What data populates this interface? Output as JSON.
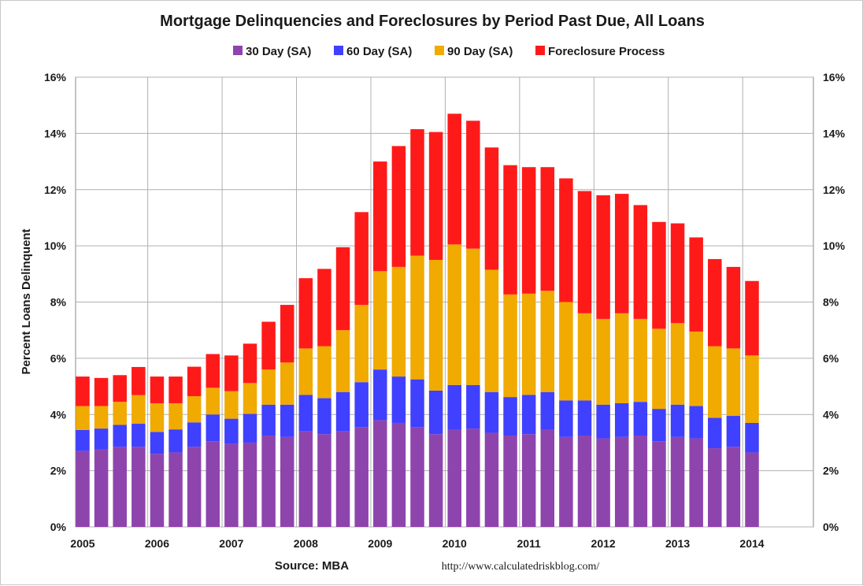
{
  "chart_data": {
    "type": "bar",
    "stacked": true,
    "title": "Mortgage Delinquencies and Foreclosures by Period Past Due, All Loans",
    "ylabel": "Percent Loans Delinquent",
    "ylim": [
      0,
      16
    ],
    "y_ticks": [
      "0%",
      "2%",
      "4%",
      "6%",
      "8%",
      "10%",
      "12%",
      "14%",
      "16%"
    ],
    "x_tick_labels": [
      "2005",
      "2006",
      "2007",
      "2008",
      "2009",
      "2010",
      "2011",
      "2012",
      "2013",
      "2014"
    ],
    "grid": true,
    "legend_position": "top",
    "series": [
      {
        "name": "30 Day (SA)",
        "color": "#8e44ad",
        "values": [
          2.7,
          2.75,
          2.85,
          2.85,
          2.6,
          2.65,
          2.85,
          3.05,
          2.95,
          3.0,
          3.25,
          3.2,
          3.4,
          3.3,
          3.4,
          3.55,
          3.8,
          3.7,
          3.55,
          3.3,
          3.45,
          3.5,
          3.35,
          3.25,
          3.3,
          3.45,
          3.2,
          3.25,
          3.15,
          3.2,
          3.25,
          3.05,
          3.2,
          3.15,
          2.8,
          2.85,
          2.65
        ]
      },
      {
        "name": "60 Day (SA)",
        "color": "#4040ff",
        "values": [
          0.75,
          0.75,
          0.78,
          0.82,
          0.78,
          0.82,
          0.87,
          0.95,
          0.9,
          1.02,
          1.1,
          1.15,
          1.3,
          1.28,
          1.4,
          1.6,
          1.8,
          1.65,
          1.7,
          1.55,
          1.6,
          1.55,
          1.45,
          1.37,
          1.4,
          1.35,
          1.3,
          1.25,
          1.2,
          1.2,
          1.2,
          1.15,
          1.15,
          1.15,
          1.08,
          1.1,
          1.05
        ]
      },
      {
        "name": "90 Day (SA)",
        "color": "#f0aa00",
        "values": [
          0.85,
          0.8,
          0.82,
          1.02,
          1.02,
          0.93,
          0.93,
          0.95,
          0.98,
          1.1,
          1.25,
          1.5,
          1.65,
          1.85,
          2.2,
          2.75,
          3.5,
          3.9,
          4.4,
          4.65,
          5.0,
          4.85,
          4.35,
          3.65,
          3.6,
          3.6,
          3.5,
          3.1,
          3.05,
          3.2,
          2.95,
          2.85,
          2.9,
          2.65,
          2.55,
          2.4,
          2.4
        ]
      },
      {
        "name": "Foreclosure Process",
        "color": "#ff1a1a",
        "values": [
          1.05,
          1.0,
          0.95,
          1.0,
          0.95,
          0.95,
          1.05,
          1.2,
          1.27,
          1.4,
          1.7,
          2.05,
          2.5,
          2.75,
          2.95,
          3.3,
          3.9,
          4.3,
          4.5,
          4.55,
          4.65,
          4.55,
          4.35,
          4.6,
          4.5,
          4.4,
          4.4,
          4.35,
          4.4,
          4.25,
          4.05,
          3.8,
          3.55,
          3.35,
          3.1,
          2.9,
          2.65
        ]
      }
    ]
  },
  "source": "Source: MBA",
  "url": "http://www.calculatedriskblog.com/"
}
